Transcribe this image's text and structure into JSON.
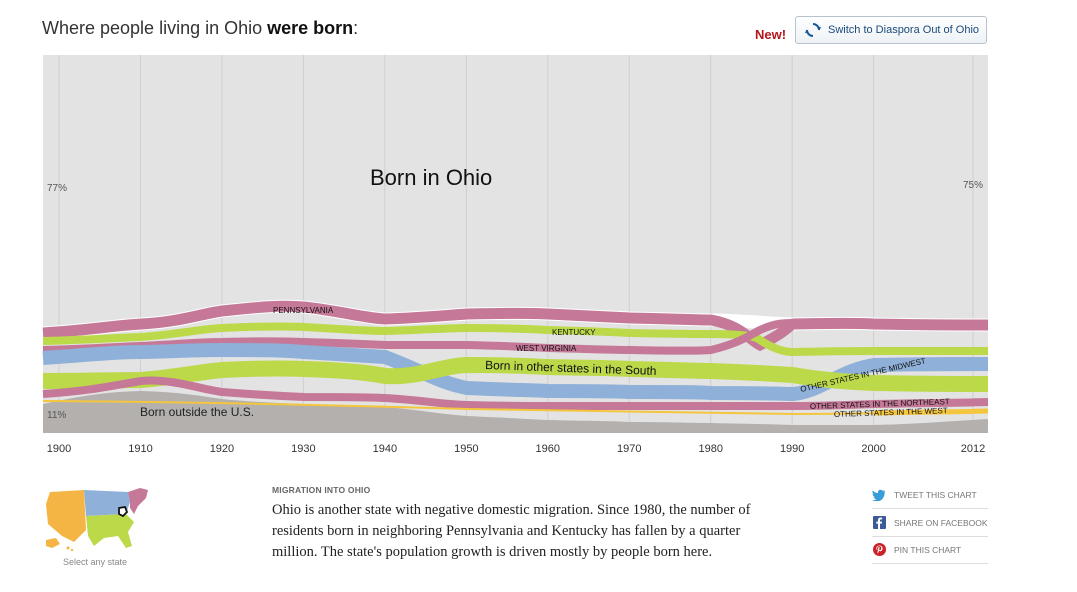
{
  "header": {
    "title_prefix": "Where people living in Ohio",
    "title_bold": "were born",
    "title_suffix": ":",
    "new_label": "New!",
    "switch_label": "Switch to Diaspora Out of Ohio"
  },
  "colors": {
    "ohio": "#e3e3e3",
    "pennsylvania": "#c57897",
    "kentucky": "#bcd94a",
    "west_virginia": "#c57897",
    "south": "#bcd94a",
    "midwest": "#8fb0d8",
    "northeast": "#c57897",
    "west": "#f4c63d",
    "foreign": "#b3b0ae"
  },
  "chart_data": {
    "type": "area",
    "x": [
      1900,
      1910,
      1920,
      1930,
      1940,
      1950,
      1960,
      1970,
      1980,
      1990,
      2000,
      2012
    ],
    "series": [
      {
        "name": "Born outside the U.S.",
        "values": [
          11,
          11,
          10,
          8,
          7,
          5,
          4,
          3,
          3,
          2,
          3,
          4
        ]
      },
      {
        "name": "Other states in the West",
        "values": [
          0.5,
          0.5,
          0.5,
          0.5,
          0.5,
          0.5,
          0.5,
          0.5,
          0.5,
          1,
          1,
          2
        ]
      },
      {
        "name": "Other states in the Northeast",
        "values": [
          3,
          3,
          3,
          3,
          3,
          3,
          3,
          3,
          3,
          3,
          3,
          3
        ]
      },
      {
        "name": "Born in other states in the South",
        "values": [
          1,
          1,
          4,
          4,
          3,
          7,
          7,
          7,
          7,
          3,
          4,
          4
        ]
      },
      {
        "name": "Other states in the Midwest",
        "values": [
          4,
          4,
          4,
          4,
          4,
          4,
          4,
          4,
          4,
          4,
          4,
          4
        ]
      },
      {
        "name": "West Virginia",
        "values": [
          1.5,
          1.5,
          1.5,
          2,
          2,
          2,
          2,
          2,
          2,
          1,
          1,
          1
        ]
      },
      {
        "name": "Kentucky",
        "values": [
          2,
          2,
          2,
          3,
          3,
          4,
          4,
          4,
          3,
          2,
          2,
          2
        ]
      },
      {
        "name": "Pennsylvania",
        "values": [
          3,
          3,
          3,
          3,
          3,
          3,
          3,
          3,
          3,
          2,
          2,
          2
        ]
      },
      {
        "name": "Born in Ohio",
        "values": [
          77,
          77,
          75,
          73,
          76,
          74,
          73,
          74,
          75,
          78,
          77,
          75
        ]
      }
    ],
    "labels": {
      "ohio": "Born in Ohio",
      "pennsylvania": "PENNSYLVANIA",
      "kentucky": "KENTUCKY",
      "west_virginia": "WEST VIRGINIA",
      "south": "Born in other states in the South",
      "midwest": "OTHER STATES IN THE MIDWEST",
      "northeast": "OTHER STATES IN THE NORTHEAST",
      "west": "OTHER STATES IN THE WEST",
      "foreign": "Born outside the U.S."
    },
    "annotations": {
      "ohio_1900": "77%",
      "ohio_2012": "75%",
      "foreign_1900": "11%"
    },
    "x_ticks": [
      "1900",
      "1910",
      "1920",
      "1930",
      "1940",
      "1950",
      "1960",
      "1970",
      "1980",
      "1990",
      "2000",
      "2012"
    ],
    "ylim": [
      0,
      100
    ]
  },
  "map": {
    "caption": "Select any state"
  },
  "article": {
    "kicker": "MIGRATION INTO OHIO",
    "body": "Ohio is another state with negative domestic migration. Since 1980, the number of residents born in neighboring Pennsylvania and Kentucky has fallen by a quarter million. The state's population growth is driven mostly by people born here."
  },
  "share": {
    "tweet": "TWEET THIS CHART",
    "facebook": "SHARE ON FACEBOOK",
    "pin": "PIN THIS CHART"
  }
}
